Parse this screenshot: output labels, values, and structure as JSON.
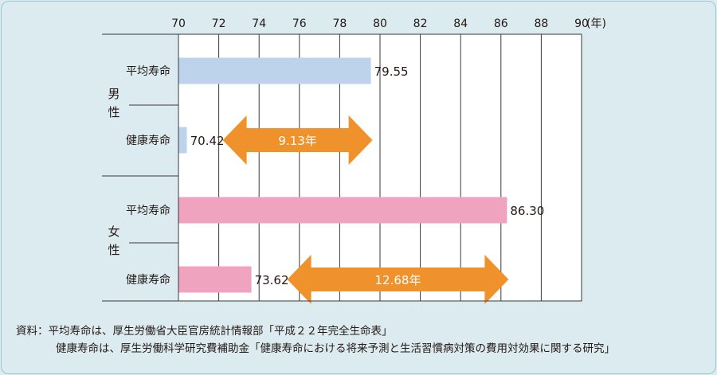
{
  "chart_data": {
    "type": "bar",
    "orientation": "horizontal",
    "x_ticks": [
      70,
      72,
      74,
      76,
      78,
      80,
      82,
      84,
      86,
      88,
      90
    ],
    "x_unit": "(年)",
    "xlim": [
      70,
      90
    ],
    "grid": true,
    "groups": [
      {
        "label": "男性",
        "bars": [
          {
            "label": "平均寿命",
            "value": 79.55,
            "value_label": "79.55",
            "color": "#bdd3ec"
          },
          {
            "label": "健康寿命",
            "value": 70.42,
            "value_label": "70.42",
            "color": "#bdd3ec"
          }
        ],
        "gap_label": "9.13年"
      },
      {
        "label": "女性",
        "bars": [
          {
            "label": "平均寿命",
            "value": 86.3,
            "value_label": "86.30",
            "color": "#f0a3bf"
          },
          {
            "label": "健康寿命",
            "value": 73.62,
            "value_label": "73.62",
            "color": "#f0a3bf"
          }
        ],
        "gap_label": "12.68年"
      }
    ],
    "arrow_color": "#f0922c"
  },
  "notes": {
    "line1": "資料：平均寿命は、厚生労働省大臣官房統計情報部「平成２２年完全生命表」",
    "line2": "健康寿命は、厚生労働科学研究費補助金「健康寿命における将来予測と生活習慣病対策の費用対効果に関する研究」"
  }
}
